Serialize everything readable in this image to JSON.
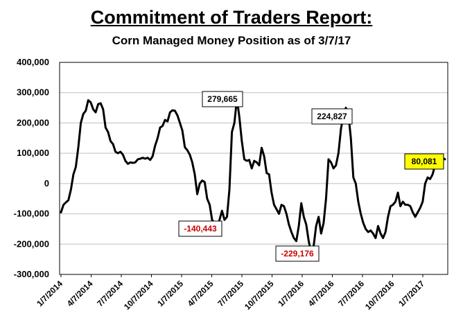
{
  "chart_data": {
    "type": "line",
    "title": "Commitment of Traders Report:",
    "subtitle": "Corn Managed Money Position as of 3/7/17",
    "xlabel": "",
    "ylabel": "",
    "ylim": [
      -300000,
      400000
    ],
    "y_ticks": [
      400000,
      300000,
      200000,
      100000,
      0,
      -100000,
      -200000,
      -300000
    ],
    "y_tick_labels": [
      "400,000",
      "300,000",
      "200,000",
      "100,000",
      "0",
      "-100,000",
      "-200,000",
      "-300,000"
    ],
    "x_tick_labels": [
      "1/7/2014",
      "4/7/2014",
      "7/7/2014",
      "10/7/2014",
      "1/7/2015",
      "4/7/2015",
      "7/7/2015",
      "10/7/2015",
      "1/7/2016",
      "4/7/2016",
      "7/7/2016",
      "10/7/2016",
      "1/7/2017"
    ],
    "grid": true,
    "line_color": "#000000",
    "series": [
      {
        "values": [
          -95000,
          -70000,
          -62000,
          -55000,
          -20000,
          30000,
          55000,
          120000,
          200000,
          230000,
          240000,
          275000,
          268000,
          245000,
          235000,
          262000,
          265000,
          245000,
          185000,
          170000,
          140000,
          130000,
          105000,
          100000,
          105000,
          95000,
          75000,
          65000,
          70000,
          68000,
          70000,
          80000,
          82000,
          85000,
          82000,
          85000,
          78000,
          90000,
          125000,
          150000,
          185000,
          190000,
          210000,
          205000,
          235000,
          242000,
          240000,
          225000,
          200000,
          175000,
          120000,
          110000,
          95000,
          70000,
          30000,
          -35000,
          0,
          10000,
          5000,
          -50000,
          -70000,
          -120000,
          -130000,
          -140443,
          -120000,
          -90000,
          -120000,
          -110000,
          -20000,
          170000,
          200000,
          279665,
          220000,
          140000,
          80000,
          75000,
          78000,
          50000,
          75000,
          70000,
          60000,
          118000,
          90000,
          35000,
          30000,
          -30000,
          -70000,
          -85000,
          -100000,
          -70000,
          -75000,
          -100000,
          -135000,
          -160000,
          -180000,
          -190000,
          -140000,
          -65000,
          -110000,
          -135000,
          -190000,
          -229176,
          -205000,
          -140000,
          -110000,
          -165000,
          -130000,
          -50000,
          80000,
          70000,
          50000,
          60000,
          100000,
          180000,
          224827,
          250000,
          230000,
          150000,
          20000,
          0,
          -60000,
          -100000,
          -130000,
          -150000,
          -160000,
          -155000,
          -165000,
          -180000,
          -140000,
          -165000,
          -180000,
          -160000,
          -110000,
          -75000,
          -70000,
          -60000,
          -30000,
          -75000,
          -60000,
          -70000,
          -70000,
          -75000,
          -95000,
          -110000,
          -95000,
          -80000,
          -60000,
          0,
          20000,
          15000,
          30000,
          60000,
          80081,
          92000,
          85000,
          80000
        ]
      }
    ],
    "annotations": [
      {
        "text": "279,665",
        "style": "plain"
      },
      {
        "text": "-140,443",
        "style": "negative"
      },
      {
        "text": "224,827",
        "style": "plain"
      },
      {
        "text": "-229,176",
        "style": "negative"
      },
      {
        "text": "80,081",
        "style": "highlight"
      }
    ],
    "colors": {
      "negative_text": "#cc0000",
      "highlight_fill": "#ffff00"
    }
  }
}
